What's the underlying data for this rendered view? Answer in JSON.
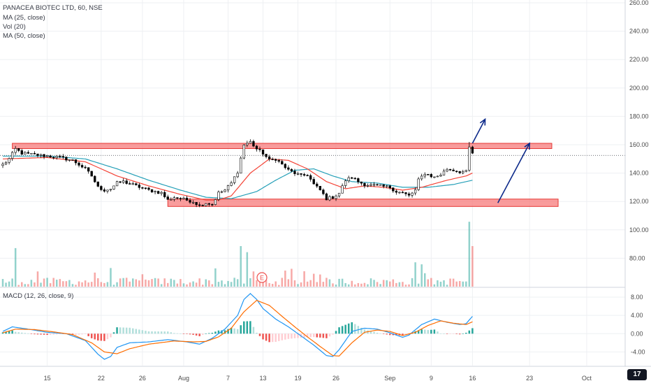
{
  "header": {
    "title": "PANACEA BIOTEC LTD, 60, NSE",
    "ma25_label": "MA (25, close)",
    "vol_label": "Vol (20)",
    "ma50_label": "MA (50, close)"
  },
  "macd_pane": {
    "label": "MACD (12, 26, close, 9)"
  },
  "logo": {
    "text": "17"
  },
  "earnings_marker": {
    "label": "E"
  },
  "colors": {
    "up": "#26a69a",
    "down": "#ef5350",
    "candle": "#000000",
    "ma25": "#f44336",
    "ma50": "#26a0b8",
    "macd_line": "#2196f3",
    "signal_line": "#ff6d00",
    "zone_fill": "#f77b7b",
    "zone_stroke": "#e53935",
    "arrow": "#0d2a8a",
    "grid": "#eef0f3"
  },
  "chart_data": [
    {
      "type": "candlestick",
      "title": "PANACEA BIOTEC LTD, 60, NSE",
      "ylim": [
        60,
        262
      ],
      "yticks": [
        "80.00",
        "100.00",
        "120.00",
        "140.00",
        "160.00",
        "180.00",
        "200.00",
        "220.00",
        "240.00",
        "260.00"
      ],
      "ytick_values": [
        80,
        100,
        120,
        140,
        160,
        180,
        200,
        220,
        240,
        260
      ],
      "xticks": [
        "15",
        "22",
        "26",
        "Aug",
        "7",
        "13",
        "19",
        "26",
        "Sep",
        "9",
        "16",
        "23",
        "Oct"
      ],
      "xtick_index": [
        14,
        31,
        44,
        57,
        71,
        82,
        93,
        105,
        122,
        135,
        148,
        166,
        184
      ],
      "x_index_range": [
        0,
        197
      ],
      "current_price": 152.5,
      "anchors": [
        [
          0,
          146
        ],
        [
          2,
          150
        ],
        [
          4,
          157
        ],
        [
          6,
          154
        ],
        [
          10,
          153
        ],
        [
          14,
          152
        ],
        [
          18,
          151
        ],
        [
          22,
          149
        ],
        [
          26,
          143
        ],
        [
          28,
          138
        ],
        [
          30,
          130
        ],
        [
          32,
          128
        ],
        [
          34,
          129
        ],
        [
          36,
          133
        ],
        [
          38,
          134
        ],
        [
          42,
          131
        ],
        [
          46,
          128
        ],
        [
          50,
          126
        ],
        [
          52,
          121
        ],
        [
          54,
          123
        ],
        [
          58,
          121
        ],
        [
          60,
          120
        ],
        [
          62,
          117
        ],
        [
          64,
          119
        ],
        [
          66,
          118
        ],
        [
          68,
          126
        ],
        [
          70,
          128
        ],
        [
          72,
          133
        ],
        [
          74,
          141
        ],
        [
          76,
          160
        ],
        [
          78,
          162
        ],
        [
          80,
          157
        ],
        [
          82,
          154
        ],
        [
          84,
          149
        ],
        [
          86,
          150
        ],
        [
          88,
          146
        ],
        [
          90,
          142
        ],
        [
          92,
          140
        ],
        [
          94,
          138
        ],
        [
          96,
          139
        ],
        [
          98,
          132
        ],
        [
          100,
          128
        ],
        [
          102,
          122
        ],
        [
          104,
          123
        ],
        [
          106,
          126
        ],
        [
          108,
          135
        ],
        [
          110,
          137
        ],
        [
          112,
          134
        ],
        [
          114,
          132
        ],
        [
          118,
          131
        ],
        [
          122,
          130
        ],
        [
          124,
          127
        ],
        [
          126,
          126
        ],
        [
          128,
          124
        ],
        [
          130,
          128
        ],
        [
          131,
          135
        ],
        [
          133,
          140
        ],
        [
          136,
          137
        ],
        [
          138,
          139
        ],
        [
          140,
          143
        ],
        [
          142,
          142
        ],
        [
          144,
          141
        ],
        [
          146,
          141
        ],
        [
          147,
          158
        ],
        [
          148,
          154
        ]
      ],
      "ma25_anchors": [
        [
          0,
          150
        ],
        [
          14,
          151
        ],
        [
          26,
          148
        ],
        [
          36,
          138
        ],
        [
          46,
          131
        ],
        [
          56,
          125
        ],
        [
          64,
          121
        ],
        [
          68,
          121
        ],
        [
          72,
          124
        ],
        [
          78,
          140
        ],
        [
          84,
          150
        ],
        [
          90,
          149
        ],
        [
          96,
          143
        ],
        [
          102,
          134
        ],
        [
          108,
          129
        ],
        [
          114,
          131
        ],
        [
          120,
          130
        ],
        [
          126,
          128
        ],
        [
          132,
          130
        ],
        [
          140,
          135
        ],
        [
          146,
          138
        ],
        [
          148,
          140
        ]
      ],
      "ma50_anchors": [
        [
          0,
          152
        ],
        [
          14,
          152
        ],
        [
          26,
          150
        ],
        [
          36,
          143
        ],
        [
          46,
          135
        ],
        [
          56,
          128
        ],
        [
          64,
          123
        ],
        [
          72,
          122
        ],
        [
          80,
          127
        ],
        [
          86,
          135
        ],
        [
          92,
          142
        ],
        [
          98,
          143
        ],
        [
          104,
          138
        ],
        [
          110,
          134
        ],
        [
          118,
          133
        ],
        [
          126,
          130
        ],
        [
          134,
          130
        ],
        [
          142,
          132
        ],
        [
          148,
          135
        ]
      ],
      "zones": [
        {
          "name": "resistance-zone",
          "x_index": [
            3,
            173
          ],
          "y_range": [
            157.3,
            161
          ]
        },
        {
          "name": "support-zone",
          "x_index": [
            52,
            175
          ],
          "y_range": [
            116.5,
            121.7
          ]
        }
      ],
      "arrows": [
        {
          "name": "breakout-arrow",
          "from": [
            148,
            161
          ],
          "to": [
            152,
            178
          ]
        },
        {
          "name": "target-arrow",
          "from": [
            156,
            119
          ],
          "to": [
            166,
            161
          ]
        }
      ],
      "volume_spikes": [
        {
          "x_index": 4,
          "value": 0.95
        },
        {
          "x_index": 75,
          "value": 1.0
        },
        {
          "x_index": 77,
          "value": 0.85
        },
        {
          "x_index": 130,
          "value": 0.6
        },
        {
          "x_index": 132,
          "value": 0.55
        },
        {
          "x_index": 147,
          "value": 1.6
        },
        {
          "x_index": 148,
          "value": 1.0
        },
        {
          "x_index": 67,
          "value": 0.45
        }
      ]
    },
    {
      "type": "macd",
      "title": "MACD (12, 26, close, 9)",
      "ylim": [
        -7,
        10
      ],
      "yticks": [
        "-4.00",
        "0.00",
        "4.00",
        "8.00"
      ],
      "ytick_values": [
        -4,
        0,
        4,
        8
      ],
      "macd_anchors": [
        [
          0,
          0.5
        ],
        [
          3,
          1.5
        ],
        [
          8,
          1.0
        ],
        [
          14,
          0.3
        ],
        [
          20,
          0.0
        ],
        [
          26,
          -1.5
        ],
        [
          30,
          -4.5
        ],
        [
          32,
          -5.6
        ],
        [
          34,
          -5.0
        ],
        [
          36,
          -3.0
        ],
        [
          40,
          -2.0
        ],
        [
          46,
          -1.8
        ],
        [
          52,
          -1.3
        ],
        [
          58,
          -1.8
        ],
        [
          62,
          -2.3
        ],
        [
          66,
          -1.0
        ],
        [
          70,
          1.0
        ],
        [
          74,
          4.0
        ],
        [
          76,
          7.5
        ],
        [
          78,
          8.8
        ],
        [
          80,
          7.5
        ],
        [
          82,
          5.5
        ],
        [
          86,
          3.2
        ],
        [
          90,
          1.5
        ],
        [
          94,
          -0.5
        ],
        [
          98,
          -2.5
        ],
        [
          102,
          -4.8
        ],
        [
          104,
          -5.0
        ],
        [
          106,
          -3.5
        ],
        [
          110,
          0.5
        ],
        [
          114,
          1.2
        ],
        [
          118,
          1.0
        ],
        [
          122,
          0.2
        ],
        [
          126,
          -0.8
        ],
        [
          128,
          -0.3
        ],
        [
          132,
          2.0
        ],
        [
          136,
          3.2
        ],
        [
          140,
          2.5
        ],
        [
          144,
          2.0
        ],
        [
          146,
          2.2
        ],
        [
          148,
          3.8
        ]
      ],
      "signal_anchors": [
        [
          0,
          0.2
        ],
        [
          4,
          1.0
        ],
        [
          10,
          0.9
        ],
        [
          16,
          0.4
        ],
        [
          22,
          -0.2
        ],
        [
          28,
          -2.0
        ],
        [
          32,
          -4.0
        ],
        [
          36,
          -4.4
        ],
        [
          40,
          -3.3
        ],
        [
          46,
          -2.3
        ],
        [
          54,
          -1.6
        ],
        [
          60,
          -1.8
        ],
        [
          64,
          -1.7
        ],
        [
          68,
          -0.7
        ],
        [
          72,
          1.2
        ],
        [
          76,
          4.8
        ],
        [
          80,
          7.3
        ],
        [
          84,
          6.2
        ],
        [
          88,
          3.8
        ],
        [
          92,
          1.5
        ],
        [
          96,
          -0.7
        ],
        [
          100,
          -2.8
        ],
        [
          104,
          -4.8
        ],
        [
          106,
          -4.9
        ],
        [
          110,
          -2.0
        ],
        [
          114,
          0.3
        ],
        [
          118,
          0.8
        ],
        [
          122,
          0.5
        ],
        [
          126,
          -0.4
        ],
        [
          130,
          0.3
        ],
        [
          134,
          1.8
        ],
        [
          138,
          2.8
        ],
        [
          142,
          2.3
        ],
        [
          146,
          2.0
        ],
        [
          148,
          2.6
        ]
      ]
    }
  ]
}
